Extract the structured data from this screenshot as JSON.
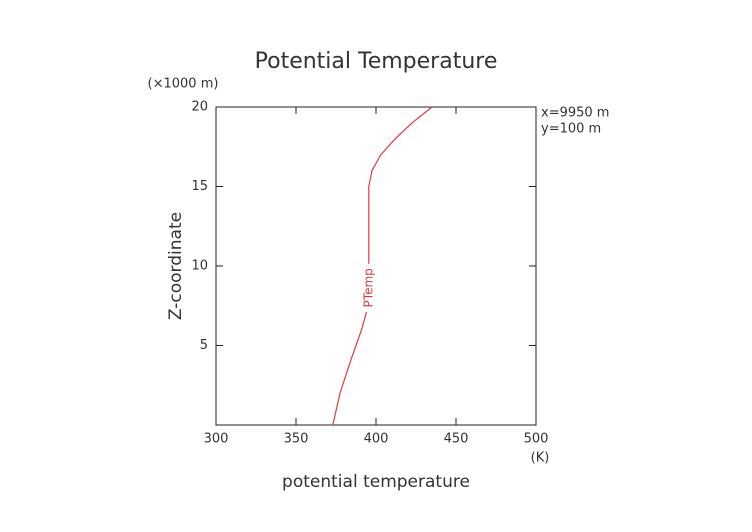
{
  "chart_data": {
    "type": "line",
    "title": "Potential Temperature",
    "xlabel": "potential temperature",
    "ylabel": "Z-coordinate",
    "x_unit": "(K)",
    "y_unit": "(×1000 m)",
    "annotations": [
      "x=9950 m",
      "y=100 m"
    ],
    "xlim": [
      300,
      500
    ],
    "xticks": [
      300,
      350,
      400,
      450,
      500
    ],
    "ylim": [
      0,
      20
    ],
    "yticks": [
      5,
      10,
      15,
      20
    ],
    "series": [
      {
        "name": "PTemp",
        "color": "#e8383d",
        "x": [
          373,
          377.5,
          384,
          387.5,
          391,
          393.8,
          395,
          395.5,
          395.5,
          397.5,
          403,
          412,
          422.5,
          435
        ],
        "values": [
          0,
          2,
          4,
          5,
          6,
          7,
          8,
          9,
          15,
          16,
          17,
          18,
          19,
          20
        ]
      }
    ]
  }
}
